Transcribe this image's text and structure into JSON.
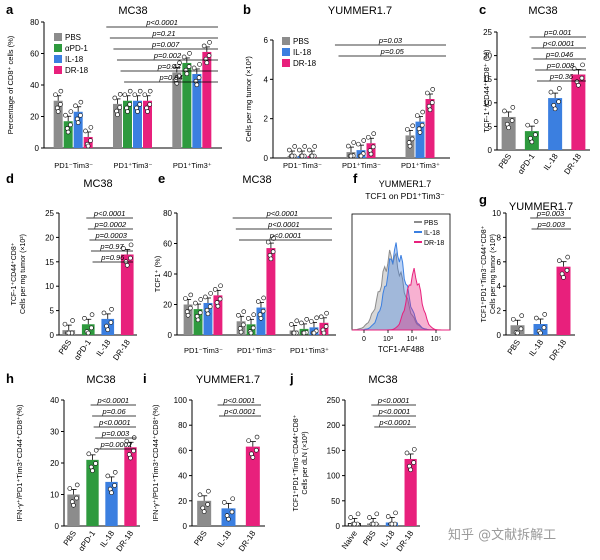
{
  "colors": {
    "PBS": "#8c8c8c",
    "aPD1": "#2e9a3e",
    "IL18": "#3b7fe0",
    "DR18": "#e8207c",
    "axis": "#000000"
  },
  "watermark": "知乎 @文献拆解工",
  "chart_data": [
    {
      "id": "a",
      "type": "bar",
      "letter": "a",
      "title": "MC38",
      "ylabel": "Percentage of CD8⁺ cells (%)",
      "ylim": [
        0,
        80
      ],
      "yticks": [
        "0",
        "20",
        "40",
        "60",
        "80"
      ],
      "legend": [
        "PBS",
        "αPD-1",
        "IL-18",
        "DR-18"
      ],
      "categories": [
        "PD1⁻Tim3⁻",
        "PD1⁺Tim3⁻",
        "PD1⁺Tim3⁺"
      ],
      "series": [
        {
          "name": "PBS",
          "values": [
            30,
            28,
            48
          ]
        },
        {
          "name": "αPD-1",
          "values": [
            17,
            30,
            54
          ]
        },
        {
          "name": "IL-18",
          "values": [
            23,
            30,
            47
          ]
        },
        {
          "name": "DR-18",
          "values": [
            7,
            30,
            61
          ]
        }
      ],
      "pvalues": [
        "p<0.0001",
        "p=0.21",
        "p=0.007",
        "p=0.002",
        "p=0.43",
        "p=0.04"
      ]
    },
    {
      "id": "b",
      "type": "bar",
      "letter": "b",
      "title": "YUMMER1.7",
      "ylabel": "Cells per mg tumor (×10³)",
      "ylim": [
        0,
        6
      ],
      "yticks": [
        "0",
        "2",
        "4",
        "6"
      ],
      "legend": [
        "PBS",
        "IL-18",
        "DR-18"
      ],
      "categories": [
        "PD1⁻Tim3⁻",
        "PD1⁺Tim3⁻",
        "PD1⁺Tim3⁺"
      ],
      "series": [
        {
          "name": "PBS",
          "values": [
            0.1,
            0.3,
            1.15
          ]
        },
        {
          "name": "IL-18",
          "values": [
            0.1,
            0.4,
            1.85
          ]
        },
        {
          "name": "DR-18",
          "values": [
            0.1,
            0.75,
            3.0
          ]
        }
      ],
      "pvalues": [
        "p=0.03",
        "p=0.05"
      ]
    },
    {
      "id": "c",
      "type": "bar",
      "letter": "c",
      "title": "MC38",
      "ylabel": "TCF-1⁺/CD44⁺CD8⁺ (%)",
      "ylim": [
        0,
        25
      ],
      "yticks": [
        "0",
        "5",
        "10",
        "15",
        "20",
        "25"
      ],
      "categories": [
        "PBS",
        "αPD-1",
        "IL-18",
        "DR-18"
      ],
      "values": [
        7.0,
        4.0,
        11.0,
        16.0
      ],
      "pvalues": [
        "p=0.001",
        "p<0.0001",
        "p=0.046",
        "p=0.008",
        "p=0.36"
      ]
    },
    {
      "id": "d",
      "type": "bar",
      "letter": "d",
      "title": "MC38",
      "ylabel": "TCF-1⁺CD44⁺CD8⁺ Cells per mg tumor (×10²)",
      "ylim": [
        0,
        25
      ],
      "yticks": [
        "0",
        "5",
        "10",
        "15",
        "20",
        "25"
      ],
      "categories": [
        "PBS",
        "αPD-1",
        "IL-18",
        "DR-18"
      ],
      "values": [
        1.0,
        2.2,
        3.3,
        16.5
      ],
      "pvalues": [
        "p<0.0001",
        "p=0.0002",
        "p=0.0003",
        "p=0.97",
        "p=0.96"
      ]
    },
    {
      "id": "e",
      "type": "bar",
      "letter": "e",
      "title": "MC38",
      "ylabel": "TCF1⁺ (%)",
      "ylim": [
        0,
        80
      ],
      "yticks": [
        "0",
        "20",
        "40",
        "60",
        "80"
      ],
      "categories": [
        "PD1⁻Tim3⁻",
        "PD1⁺Tim3⁻",
        "PD1⁺Tim3⁺"
      ],
      "series": [
        {
          "name": "PBS",
          "values": [
            20,
            9,
            3
          ]
        },
        {
          "name": "αPD-1",
          "values": [
            17,
            7,
            4
          ]
        },
        {
          "name": "IL-18",
          "values": [
            21,
            18,
            5
          ]
        },
        {
          "name": "DR-18",
          "values": [
            26,
            57,
            8
          ]
        }
      ],
      "pvalues": [
        "p<0.0001",
        "p<0.0001",
        "p<0.0001"
      ]
    },
    {
      "id": "f",
      "type": "area",
      "letter": "f",
      "title": "YUMMER1.7",
      "subtitle": "TCF1 on PD1⁺Tim3⁻",
      "xlabel": "TCF1-AF488",
      "xticks": [
        "0",
        "10³",
        "10⁴",
        "10⁵"
      ],
      "legend": [
        "PBS",
        "IL-18",
        "DR-18"
      ]
    },
    {
      "id": "g",
      "type": "bar",
      "letter": "g",
      "title": "YUMMER1.7",
      "ylabel": "TCF1⁺PD1⁺Tim3⁻CD44⁺CD8⁺ Cells per mg tumor (×10²)",
      "ylim": [
        0,
        10
      ],
      "yticks": [
        "0",
        "2",
        "4",
        "6",
        "8",
        "10"
      ],
      "categories": [
        "PBS",
        "IL-18",
        "DR-18"
      ],
      "values": [
        0.8,
        0.9,
        5.6
      ],
      "pvalues": [
        "p=0.003",
        "p=0.003"
      ]
    },
    {
      "id": "h",
      "type": "bar",
      "letter": "h",
      "title": "MC38",
      "ylabel": "IFN-γ⁺/PD1⁺Tim3⁺CD44⁺CD8⁺(%)",
      "ylim": [
        0,
        40
      ],
      "yticks": [
        "0",
        "10",
        "20",
        "30",
        "40"
      ],
      "categories": [
        "PBS",
        "αPD-1",
        "IL-18",
        "DR-18"
      ],
      "values": [
        10,
        21,
        14,
        25
      ],
      "pvalues": [
        "p<0.0001",
        "p=0.06",
        "p<0.0001",
        "p=0.003",
        "p=0.0002"
      ]
    },
    {
      "id": "i",
      "type": "bar",
      "letter": "i",
      "title": "YUMMER1.7",
      "ylabel": "IFN-γ⁺/PD1⁺Tim3⁺CD44⁺CD8⁺(%)",
      "ylim": [
        0,
        100
      ],
      "yticks": [
        "0",
        "20",
        "40",
        "60",
        "80",
        "100"
      ],
      "categories": [
        "PBS",
        "IL-18",
        "DR-18"
      ],
      "values": [
        20,
        14,
        63
      ],
      "pvalues": [
        "p<0.0001",
        "p<0.0001"
      ]
    },
    {
      "id": "j",
      "type": "bar",
      "letter": "j",
      "title": "MC38",
      "ylabel": "TCF1⁺PD1⁺Tim3⁻CD44⁺CD8⁺ Cells per dLN (×10³)",
      "ylim": [
        0,
        250
      ],
      "yticks": [
        "0",
        "50",
        "100",
        "150",
        "200",
        "250"
      ],
      "categories": [
        "Naive",
        "PBS",
        "IL-18",
        "DR-18"
      ],
      "values": [
        5,
        5,
        7,
        133
      ],
      "pvalues": [
        "p<0.0001",
        "p<0.0001",
        "p<0.0001"
      ]
    }
  ]
}
